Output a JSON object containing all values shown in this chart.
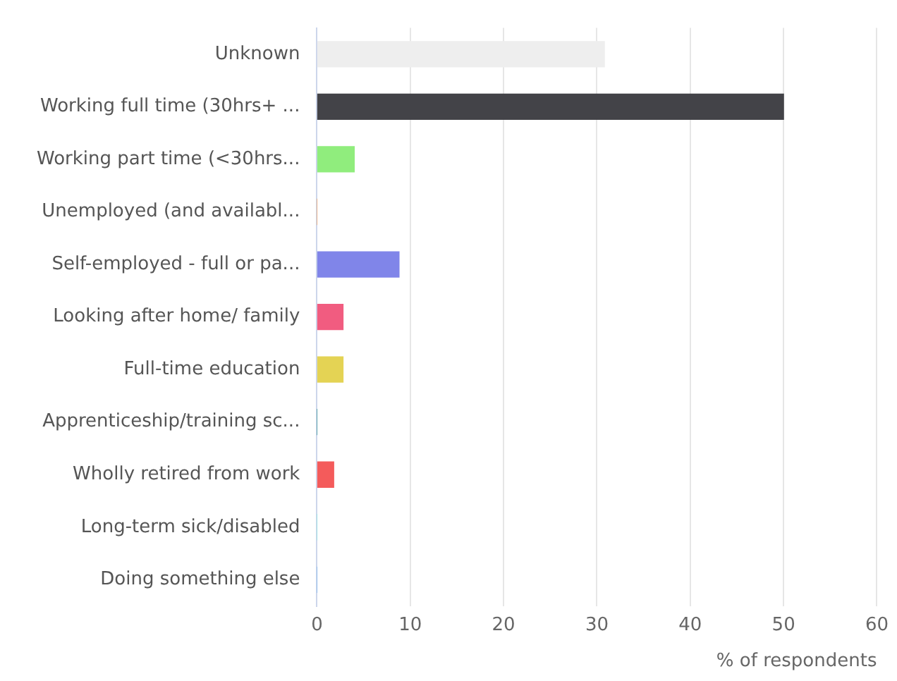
{
  "chart_data": {
    "type": "bar",
    "orientation": "horizontal",
    "xlabel": "% of respondents",
    "categories": [
      "Unknown",
      "Working full time (30hrs+ ...",
      "Working part time (<30hrs...",
      "Unemployed (and availabl...",
      "Self-employed - full or pa...",
      "Looking after home/ family",
      "Full-time education",
      "Apprenticeship/training sc...",
      "Wholly retired from work",
      "Long-term sick/disabled",
      "Doing something else"
    ],
    "values": [
      30.8,
      50,
      4,
      0,
      8.8,
      2.8,
      2.8,
      0,
      1.8,
      0,
      0
    ],
    "colors": [
      "#eeeeee",
      "#434348",
      "#90ed7d",
      "#f7a35c",
      "#8085e9",
      "#f15c80",
      "#e4d354",
      "#2b908f",
      "#f45b5b",
      "#91e8e1",
      "#7cb5ec"
    ],
    "xlim": [
      0,
      60
    ],
    "xticks": [
      0,
      10,
      20,
      30,
      40,
      50,
      60
    ],
    "grid": "x",
    "legend": false
  }
}
